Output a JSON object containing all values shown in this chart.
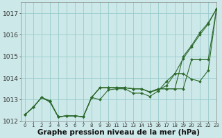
{
  "background_color": "#cce8e8",
  "grid_color": "#99cccc",
  "line_color": "#2d6a2d",
  "xlabel": "Graphe pression niveau de la mer (hPa)",
  "xlabel_fontsize": 7.5,
  "ylim": [
    1012.0,
    1017.5
  ],
  "xlim": [
    -0.5,
    23
  ],
  "yticks": [
    1012,
    1013,
    1014,
    1015,
    1016,
    1017
  ],
  "ytick_labels": [
    "1012",
    "1013",
    "1014",
    "1015",
    "1016",
    "1017"
  ],
  "xtick_labels": [
    "0",
    "1",
    "2",
    "3",
    "4",
    "5",
    "6",
    "7",
    "8",
    "9",
    "10",
    "11",
    "12",
    "13",
    "14",
    "15",
    "16",
    "17",
    "18",
    "19",
    "20",
    "21",
    "22",
    "23"
  ],
  "series": [
    [
      1012.3,
      1012.65,
      1013.1,
      1012.9,
      1012.2,
      1012.25,
      1012.25,
      1012.2,
      1013.1,
      1013.55,
      1013.55,
      1013.55,
      1013.55,
      1013.5,
      1013.5,
      1013.35,
      1013.5,
      1013.5,
      1013.5,
      1013.5,
      1014.85,
      1014.85,
      1014.85,
      1017.2
    ],
    [
      1012.3,
      1012.65,
      1013.1,
      1012.9,
      1012.2,
      1012.25,
      1012.25,
      1012.2,
      1013.1,
      1013.55,
      1013.55,
      1013.55,
      1013.55,
      1013.5,
      1013.5,
      1013.35,
      1013.5,
      1013.5,
      1013.5,
      1015.0,
      1015.5,
      1016.1,
      1016.55,
      1017.2
    ],
    [
      1012.3,
      1012.65,
      1013.1,
      1012.9,
      1012.2,
      1012.25,
      1012.25,
      1012.2,
      1013.1,
      1013.0,
      1013.45,
      1013.5,
      1013.5,
      1013.3,
      1013.3,
      1013.15,
      1013.4,
      1013.85,
      1014.2,
      1014.2,
      1013.95,
      1013.85,
      1014.35,
      1017.2
    ],
    [
      1012.3,
      1012.65,
      1013.1,
      1012.95,
      1012.2,
      1012.25,
      1012.25,
      1012.2,
      1013.1,
      1013.55,
      1013.55,
      1013.55,
      1013.55,
      1013.5,
      1013.5,
      1013.35,
      1013.45,
      1013.65,
      1014.2,
      1014.9,
      1015.45,
      1016.0,
      1016.5,
      1017.2
    ]
  ]
}
